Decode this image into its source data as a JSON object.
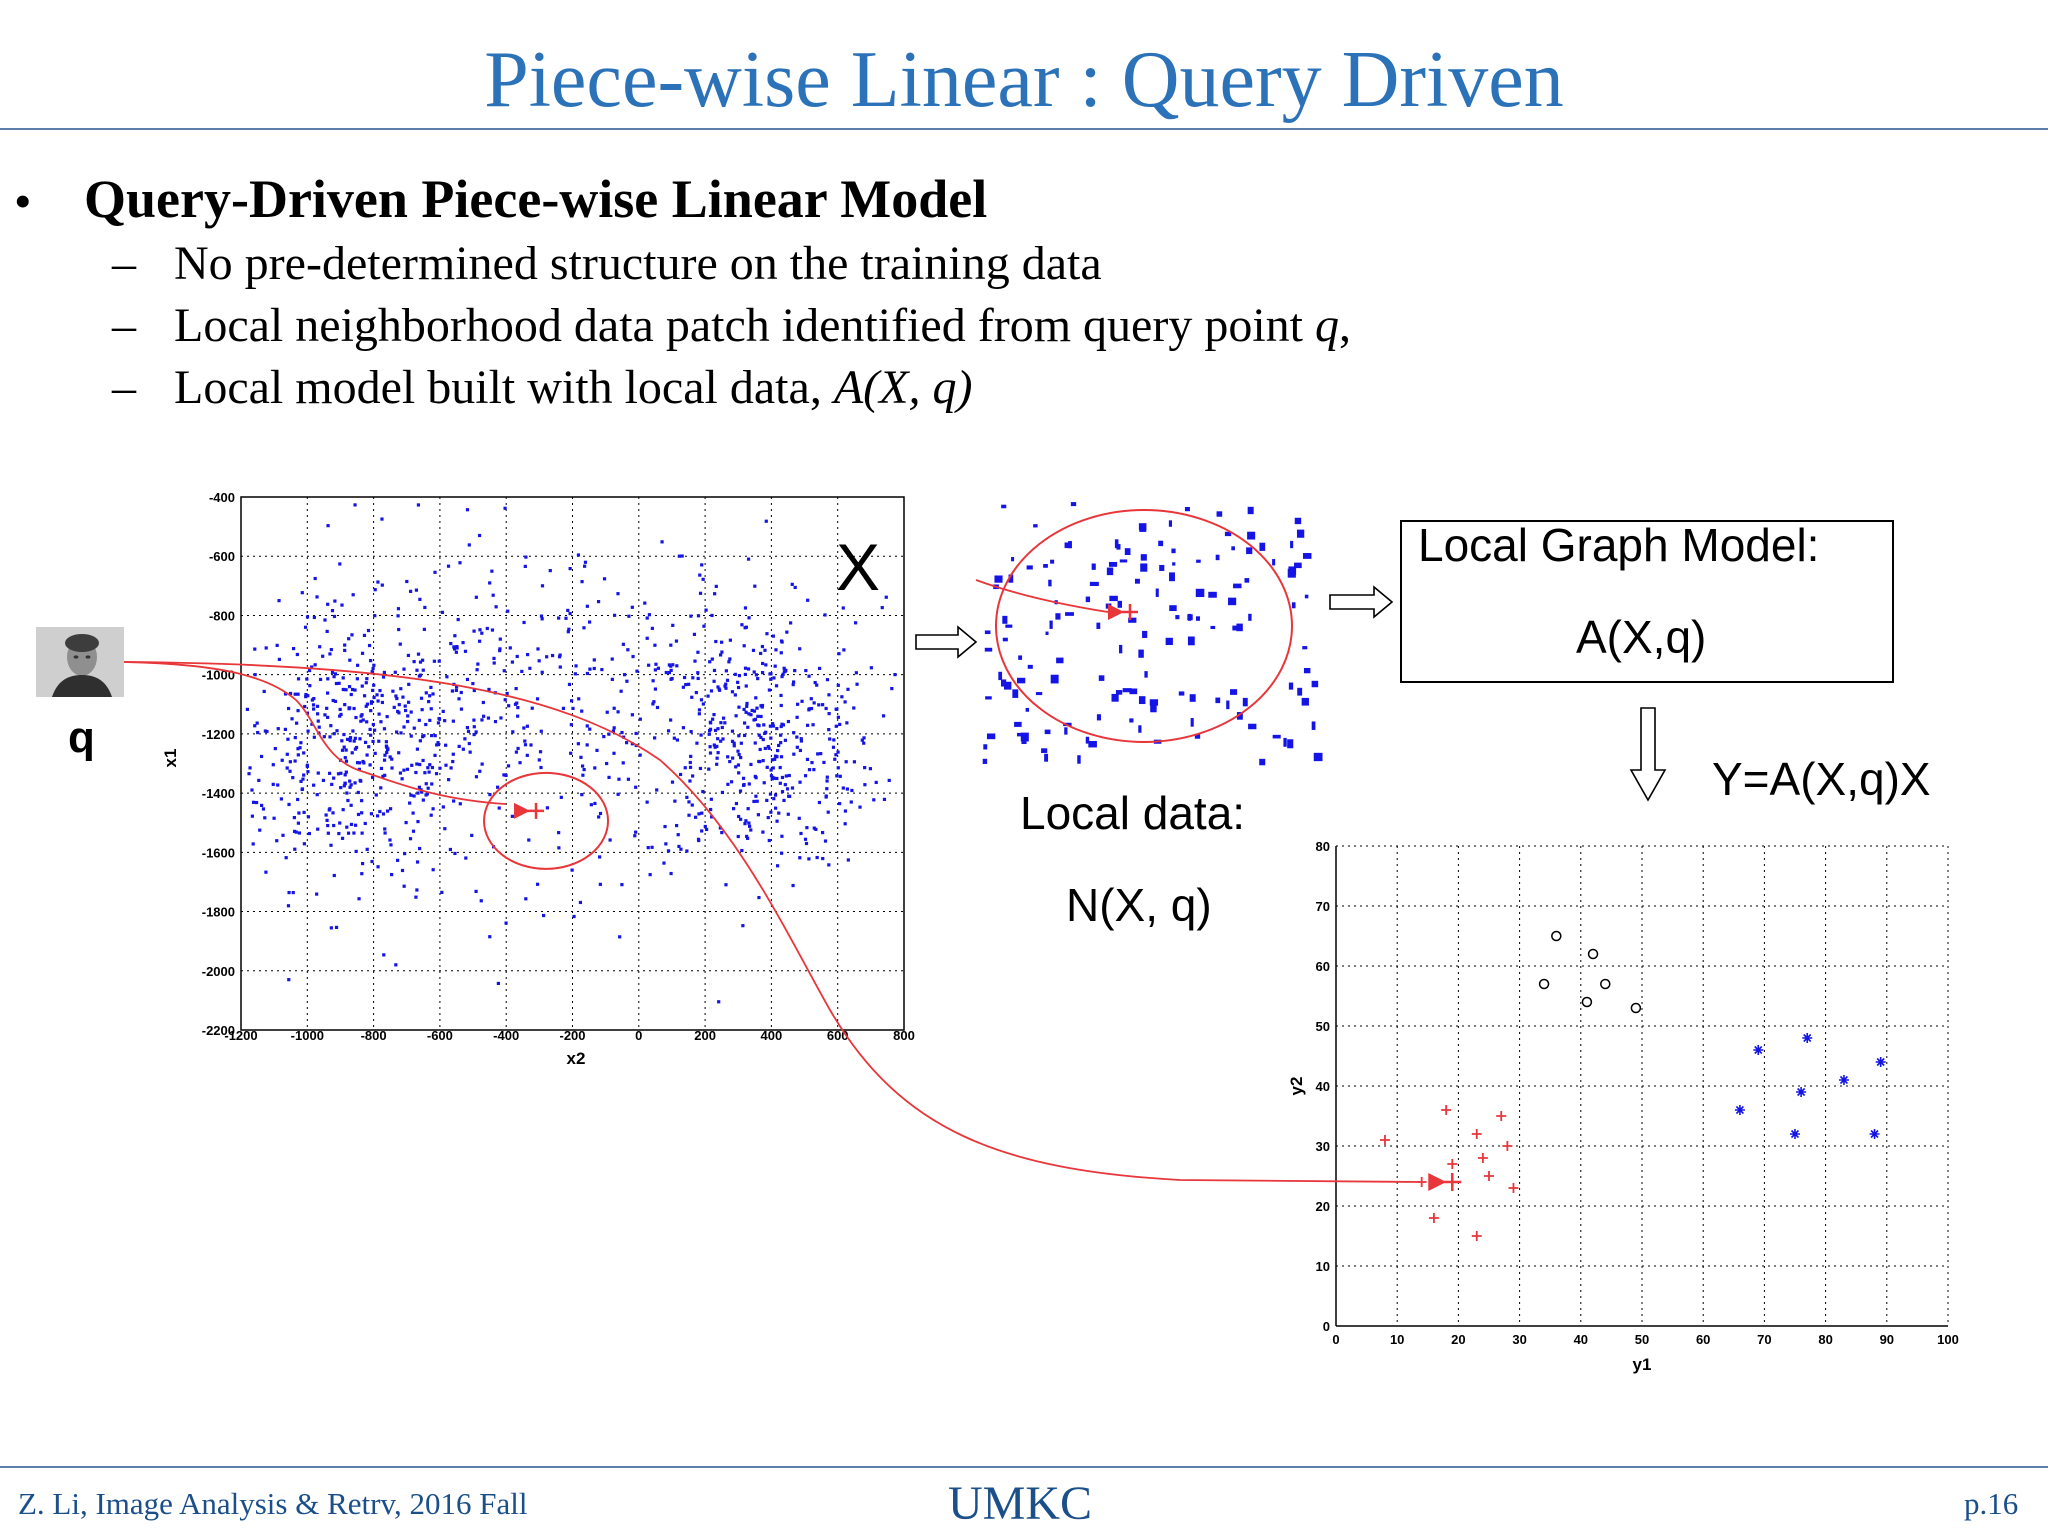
{
  "slide": {
    "title": "Piece-wise Linear : Query Driven",
    "bullet_main": "Query-Driven Piece-wise Linear Model",
    "sub_items": [
      {
        "text": "No pre-determined structure on the training data",
        "italic": ""
      },
      {
        "text": "Local neighborhood data patch identified from query point ",
        "italic": "q",
        "tail": ","
      },
      {
        "text": "Local model built with local data, ",
        "italic": "A(X, q)",
        "tail": ""
      }
    ],
    "bullet_symbol": "•",
    "dash_symbol": "–"
  },
  "diagram": {
    "query_label": "q",
    "dataset_label": "X",
    "local_data_line1": "Local data:",
    "local_data_line2": "N(X, q)",
    "graph_model_title": "Local Graph Model:",
    "graph_model_formula": "A(X,q)",
    "output_formula": "Y=A(X,q)X"
  },
  "colors": {
    "title_blue": "#2b72b8",
    "point_blue": "#1414e6",
    "curve_red": "#e8363a",
    "rule_blue": "#5d7ea8"
  },
  "chart_data": [
    {
      "type": "scatter",
      "name": "input-space",
      "xlabel": "x2",
      "ylabel": "x1",
      "xlim": [
        -1200,
        800
      ],
      "ylim": [
        -2200,
        -400
      ],
      "x_ticks": [
        -1200,
        -1000,
        -800,
        -600,
        -400,
        -200,
        0,
        200,
        400,
        600,
        800
      ],
      "y_ticks": [
        -400,
        -600,
        -800,
        -1000,
        -1200,
        -1400,
        -1600,
        -1800,
        -2000,
        -2200
      ],
      "grid": true,
      "clusters": [
        {
          "center": [
            -850,
            -1250
          ],
          "spread": [
            200,
            230
          ],
          "count": 460
        },
        {
          "center": [
            350,
            -1220
          ],
          "spread": [
            190,
            220
          ],
          "count": 420
        },
        {
          "center": [
            -250,
            -1100
          ],
          "spread": [
            380,
            300
          ],
          "count": 320
        }
      ],
      "query_point": [
        -310,
        -1460
      ],
      "neighborhood_radius_units": [
        190,
        160
      ]
    },
    {
      "type": "scatter",
      "name": "output-space",
      "xlabel": "y1",
      "ylabel": "y2",
      "xlim": [
        0,
        100
      ],
      "ylim": [
        0,
        80
      ],
      "x_ticks": [
        0,
        10,
        20,
        30,
        40,
        50,
        60,
        70,
        80,
        90,
        100
      ],
      "y_ticks": [
        0,
        10,
        20,
        30,
        40,
        50,
        60,
        70,
        80
      ],
      "grid": true,
      "series": [
        {
          "marker": "plus",
          "color": "#e8363a",
          "x": [
            8,
            18,
            19,
            23,
            24,
            25,
            27,
            28,
            29,
            16,
            23,
            14
          ],
          "y": [
            31,
            36,
            27,
            32,
            28,
            25,
            35,
            30,
            23,
            18,
            15,
            24
          ]
        },
        {
          "marker": "circle",
          "color": "#000000",
          "x": [
            34,
            36,
            42,
            44,
            41,
            49
          ],
          "y": [
            57,
            65,
            62,
            57,
            54,
            53
          ]
        },
        {
          "marker": "star",
          "color": "#1414e6",
          "x": [
            66,
            69,
            75,
            77,
            76,
            83,
            88,
            89
          ],
          "y": [
            36,
            46,
            32,
            48,
            39,
            41,
            32,
            44
          ]
        }
      ],
      "query_point": [
        19,
        24
      ]
    }
  ]
}
